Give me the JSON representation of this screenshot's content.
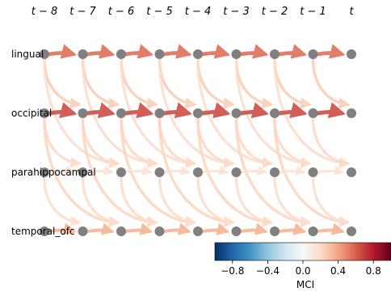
{
  "time_labels": [
    "t − 8",
    "t − 7",
    "t − 6",
    "t − 5",
    "t − 4",
    "t − 3",
    "t − 2",
    "t − 1",
    "t"
  ],
  "variables": [
    "lingual",
    "occipital",
    "parahippocampal",
    "temporal_ofc"
  ],
  "colorbar": {
    "label": "MCI",
    "ticks": [
      "−0.8",
      "−0.4",
      "0.0",
      "0.4",
      "0.8"
    ],
    "tick_values": [
      -0.8,
      -0.4,
      0.0,
      0.4,
      0.8
    ],
    "range": [
      -1.0,
      1.0
    ],
    "colors": [
      "#053061",
      "#2166ac",
      "#4393c3",
      "#92c5de",
      "#d1e5f0",
      "#f7f7f7",
      "#fddbc7",
      "#f4a582",
      "#d6604d",
      "#b2182b",
      "#67001f"
    ]
  },
  "node_color": "#808080",
  "links": [
    {
      "from": "lingual",
      "to": "lingual",
      "lag": 1,
      "value": 0.55
    },
    {
      "from": "lingual",
      "to": "occipital",
      "lag": 1,
      "value": 0.25
    },
    {
      "from": "lingual",
      "to": "parahippocampal",
      "lag": 2,
      "value": 0.18
    },
    {
      "from": "occipital",
      "to": "occipital",
      "lag": 1,
      "value": 0.65
    },
    {
      "from": "occipital",
      "to": "parahippocampal",
      "lag": 1,
      "value": 0.2
    },
    {
      "from": "occipital",
      "to": "temporal_ofc",
      "lag": 2,
      "value": 0.22
    },
    {
      "from": "parahippocampal",
      "to": "parahippocampal",
      "lag": 1,
      "value": 0.15
    },
    {
      "from": "parahippocampal",
      "to": "temporal_ofc",
      "lag": 1,
      "value": 0.18
    },
    {
      "from": "temporal_ofc",
      "to": "temporal_ofc",
      "lag": 1,
      "value": 0.35
    }
  ]
}
